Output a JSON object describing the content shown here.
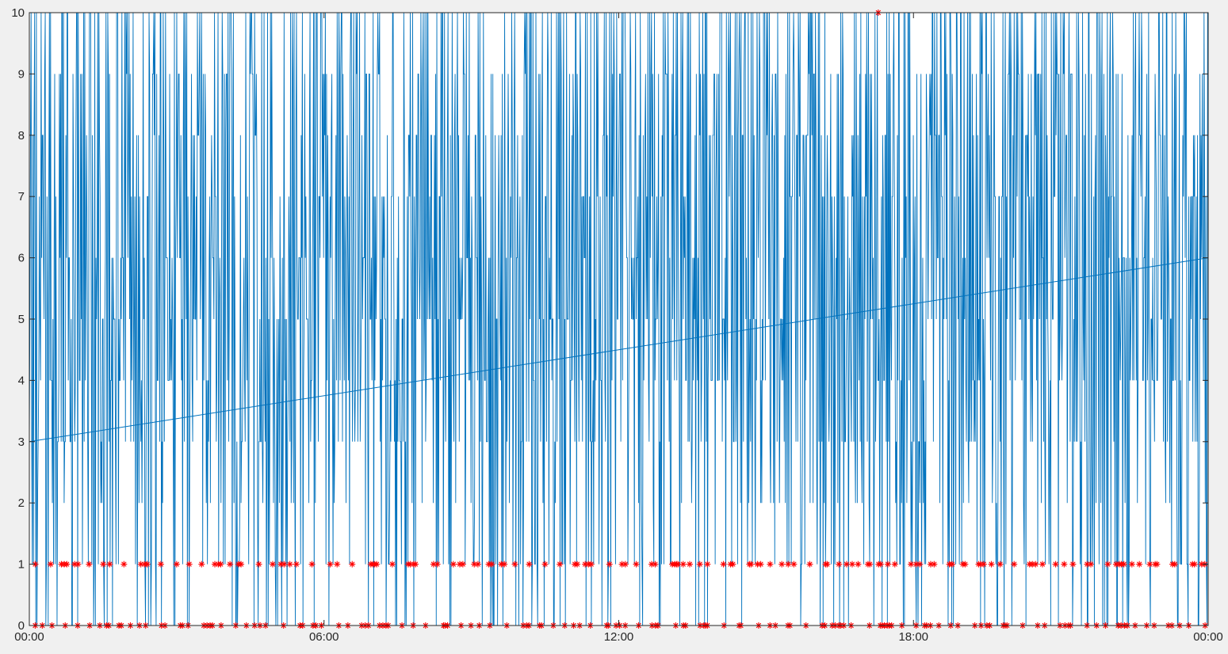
{
  "chart_data": {
    "type": "line",
    "title": "",
    "xlabel": "",
    "ylabel": "",
    "xlim": [
      "00:00",
      "00:00 (+1 day)"
    ],
    "ylim": [
      0,
      10
    ],
    "grid": false,
    "x_tick_labels": [
      "00:00",
      "06:00",
      "12:00",
      "18:00",
      "00:00"
    ],
    "y_tick_labels": [
      "0",
      "1",
      "2",
      "3",
      "4",
      "5",
      "6",
      "7",
      "8",
      "9",
      "10"
    ],
    "colors": {
      "series": "#0072bd",
      "markers": "#ff0000",
      "axes": "#262626",
      "plot_bg": "#ffffff",
      "figure_bg": "#f0f0f0"
    },
    "series": [
      {
        "style": "line",
        "description": "high-frequency integer values between 0 and 10 over 24 hours",
        "value_range": [
          0,
          10
        ],
        "sample_points": [
          [
            "00:00",
            3
          ],
          [
            "00:30",
            9
          ],
          [
            "01:00",
            10
          ],
          [
            "01:30",
            6
          ],
          [
            "02:00",
            8
          ],
          [
            "03:00",
            9
          ],
          [
            "04:00",
            10
          ],
          [
            "05:00",
            7
          ],
          [
            "06:00",
            9
          ],
          [
            "07:00",
            10
          ],
          [
            "08:00",
            6
          ],
          [
            "09:00",
            10
          ],
          [
            "10:00",
            8
          ],
          [
            "11:00",
            10
          ],
          [
            "12:00",
            9
          ],
          [
            "13:00",
            7
          ],
          [
            "14:00",
            10
          ],
          [
            "15:00",
            9
          ],
          [
            "16:00",
            8
          ],
          [
            "17:00",
            10
          ],
          [
            "18:00",
            9
          ],
          [
            "19:00",
            8
          ],
          [
            "20:00",
            10
          ],
          [
            "21:00",
            9
          ],
          [
            "22:00",
            8
          ],
          [
            "23:00",
            10
          ],
          [
            "00:00",
            6
          ]
        ]
      },
      {
        "style": "line",
        "description": "straight trend line",
        "points": [
          [
            "00:00",
            3
          ],
          [
            "00:00 (+1 day)",
            6
          ]
        ]
      },
      {
        "style": "markers-asterisk",
        "description": "red asterisk markers at values 0 and 1 across the day, one at 10",
        "marker_levels": [
          0,
          1,
          10
        ],
        "outlier": [
          "17:17",
          10
        ]
      }
    ]
  }
}
